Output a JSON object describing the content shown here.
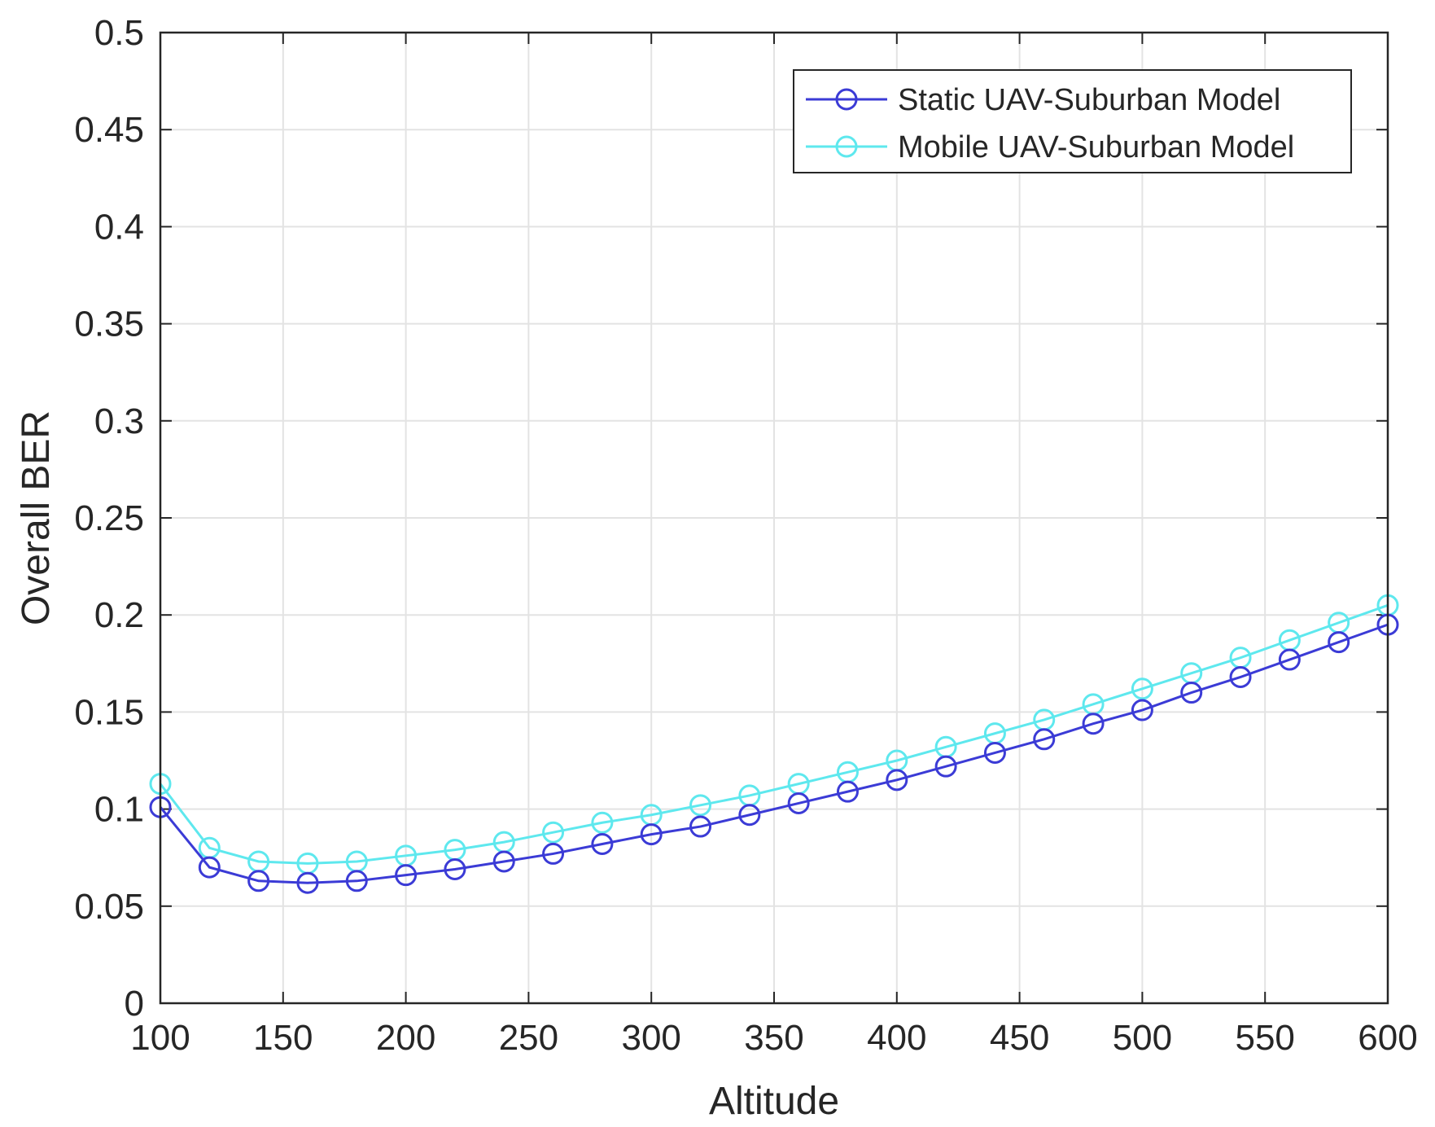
{
  "chart_data": {
    "type": "line",
    "title": "",
    "xlabel": "Altitude",
    "ylabel": "Overall BER",
    "xlim": [
      100,
      600
    ],
    "ylim": [
      0,
      0.5
    ],
    "xticks": [
      100,
      150,
      200,
      250,
      300,
      350,
      400,
      450,
      500,
      550,
      600
    ],
    "xtick_labels": [
      "100",
      "150",
      "200",
      "250",
      "300",
      "350",
      "400",
      "450",
      "500",
      "550",
      "600"
    ],
    "yticks": [
      0,
      0.05,
      0.1,
      0.15,
      0.2,
      0.25,
      0.3,
      0.35,
      0.4,
      0.45,
      0.5
    ],
    "ytick_labels": [
      "0",
      "0.05",
      "0.1",
      "0.15",
      "0.2",
      "0.25",
      "0.3",
      "0.35",
      "0.4",
      "0.45",
      "0.5"
    ],
    "grid": true,
    "legend_position": "top-right",
    "x": [
      100,
      120,
      140,
      160,
      180,
      200,
      220,
      240,
      260,
      280,
      300,
      320,
      340,
      360,
      380,
      400,
      420,
      440,
      460,
      480,
      500,
      520,
      540,
      560,
      580,
      600
    ],
    "series": [
      {
        "name": "Static UAV-Suburban Model",
        "color": "#3b3bd6",
        "marker": "circle",
        "values": [
          0.101,
          0.07,
          0.063,
          0.062,
          0.063,
          0.066,
          0.069,
          0.073,
          0.077,
          0.082,
          0.087,
          0.091,
          0.097,
          0.103,
          0.109,
          0.115,
          0.122,
          0.129,
          0.136,
          0.144,
          0.151,
          0.16,
          0.168,
          0.177,
          0.186,
          0.195
        ]
      },
      {
        "name": "Mobile UAV-Suburban Model",
        "color": "#5ee8ee",
        "marker": "circle",
        "values": [
          0.113,
          0.08,
          0.073,
          0.072,
          0.073,
          0.076,
          0.079,
          0.083,
          0.088,
          0.093,
          0.097,
          0.102,
          0.107,
          0.113,
          0.119,
          0.125,
          0.132,
          0.139,
          0.146,
          0.154,
          0.162,
          0.17,
          0.178,
          0.187,
          0.196,
          0.205
        ]
      }
    ]
  }
}
